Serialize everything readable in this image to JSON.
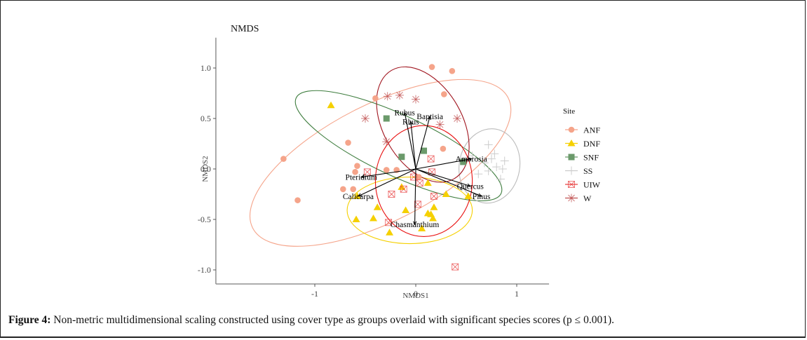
{
  "caption": {
    "label": "Figure 4:",
    "text": " Non-metric multidimensional scaling constructed using cover type as groups overlaid with significant species scores (p ≤ 0.001)."
  },
  "chart_data": {
    "type": "scatter",
    "title": "NMDS",
    "xlabel": "NMDS1",
    "ylabel": "NMDS2",
    "xlim": [
      -1.98,
      1.32
    ],
    "ylim": [
      -1.07,
      1.3
    ],
    "xticks": [
      -1,
      0,
      1
    ],
    "xtick_labels": [
      "-1",
      "0",
      "1"
    ],
    "yticks": [
      -1.0,
      -0.5,
      0.0,
      0.5,
      1.0
    ],
    "ytick_labels": [
      "-1.0",
      "-0.5",
      "0.0",
      "0.5",
      "1.0"
    ],
    "grid": false,
    "legend": {
      "title": "Site",
      "position": "right"
    },
    "series": [
      {
        "name": "ANF",
        "color": "#f5a48a",
        "marker": "circle",
        "points": [
          [
            -1.31,
            0.1
          ],
          [
            -1.17,
            -0.31
          ],
          [
            -0.67,
            0.26
          ],
          [
            -0.58,
            0.03
          ],
          [
            -0.72,
            -0.2
          ],
          [
            -0.4,
            0.7
          ],
          [
            -0.29,
            -0.01
          ],
          [
            -0.19,
            -0.01
          ],
          [
            0.16,
            1.01
          ],
          [
            0.28,
            0.74
          ],
          [
            0.36,
            0.97
          ],
          [
            0.03,
            -0.08
          ],
          [
            0.27,
            0.2
          ],
          [
            -0.6,
            -0.03
          ],
          [
            -0.62,
            -0.2
          ]
        ],
        "ellipse": {
          "cx": -0.35,
          "cy": 0.06,
          "rx": 1.42,
          "ry": 0.58,
          "angle_deg": 27
        }
      },
      {
        "name": "DNF",
        "color": "#f5d000",
        "marker": "triangle",
        "points": [
          [
            -0.84,
            0.63
          ],
          [
            -0.58,
            -0.27
          ],
          [
            -0.38,
            -0.38
          ],
          [
            -0.42,
            -0.49
          ],
          [
            -0.59,
            -0.5
          ],
          [
            -0.26,
            -0.63
          ],
          [
            -0.14,
            -0.18
          ],
          [
            -0.1,
            -0.41
          ],
          [
            0.12,
            -0.14
          ],
          [
            0.06,
            -0.59
          ],
          [
            0.12,
            -0.44
          ],
          [
            0.18,
            -0.38
          ],
          [
            0.17,
            -0.49
          ],
          [
            0.15,
            -0.45
          ],
          [
            0.52,
            -0.27
          ],
          [
            0.3,
            -0.25
          ]
        ],
        "ellipse": {
          "cx": -0.06,
          "cy": -0.41,
          "rx": 0.62,
          "ry": 0.33,
          "angle_deg": 0
        }
      },
      {
        "name": "SNF",
        "color": "#6b9a6b",
        "marker": "square",
        "points": [
          [
            -0.29,
            0.5
          ],
          [
            -0.14,
            0.12
          ],
          [
            0.08,
            0.18
          ],
          [
            0.47,
            0.07
          ]
        ],
        "ellipse": {
          "cx": -0.17,
          "cy": 0.23,
          "rx": 1.12,
          "ry": 0.3,
          "angle_deg": -25
        }
      },
      {
        "name": "SS",
        "color": "#cccccc",
        "marker": "plus",
        "points": [
          [
            0.56,
            0.13
          ],
          [
            0.62,
            -0.05
          ],
          [
            0.68,
            0.06
          ],
          [
            0.72,
            -0.02
          ],
          [
            0.75,
            0.1
          ],
          [
            0.78,
            0.15
          ],
          [
            0.8,
            0.02
          ],
          [
            0.86,
            0.0
          ],
          [
            0.88,
            0.08
          ],
          [
            0.84,
            -0.1
          ],
          [
            0.72,
            0.24
          ]
        ],
        "ellipse": {
          "cx": 0.73,
          "cy": 0.03,
          "rx": 0.3,
          "ry": 0.37,
          "angle_deg": -10
        }
      },
      {
        "name": "UIW",
        "color": "#e84040",
        "marker": "boxed-x",
        "points": [
          [
            -0.48,
            -0.03
          ],
          [
            -0.24,
            -0.25
          ],
          [
            -0.12,
            -0.2
          ],
          [
            -0.02,
            -0.08
          ],
          [
            0.04,
            -0.14
          ],
          [
            0.15,
            0.1
          ],
          [
            0.18,
            -0.27
          ],
          [
            0.02,
            -0.35
          ],
          [
            -0.27,
            -0.53
          ],
          [
            0.16,
            -0.03
          ],
          [
            0.39,
            -0.97
          ]
        ],
        "ellipse": {
          "cx": 0.08,
          "cy": -0.12,
          "rx": 0.48,
          "ry": 0.55,
          "angle_deg": 0
        }
      },
      {
        "name": "W",
        "color": "#c05050",
        "marker": "star",
        "points": [
          [
            -0.28,
            0.72
          ],
          [
            -0.16,
            0.73
          ],
          [
            0.0,
            0.69
          ],
          [
            -0.5,
            0.5
          ],
          [
            -0.29,
            0.27
          ],
          [
            0.24,
            0.44
          ],
          [
            0.41,
            0.5
          ]
        ],
        "ellipse": {
          "cx": 0.07,
          "cy": 0.44,
          "rx": 0.62,
          "ry": 0.39,
          "angle_deg": -60
        }
      }
    ],
    "species_vectors": [
      {
        "name": "Rubus",
        "x": -0.11,
        "y": 0.56
      },
      {
        "name": "Rhus",
        "x": -0.05,
        "y": 0.47
      },
      {
        "name": "Baptisia",
        "x": 0.14,
        "y": 0.52
      },
      {
        "name": "Ambrosia",
        "x": 0.55,
        "y": 0.1
      },
      {
        "name": "Pteridium",
        "x": -0.54,
        "y": -0.08
      },
      {
        "name": "Calicarpa",
        "x": -0.57,
        "y": -0.27
      },
      {
        "name": "Quercus",
        "x": 0.54,
        "y": -0.17
      },
      {
        "name": "Pinus",
        "x": 0.65,
        "y": -0.27
      },
      {
        "name": "Chasmanthium",
        "x": -0.01,
        "y": -0.55
      }
    ]
  }
}
